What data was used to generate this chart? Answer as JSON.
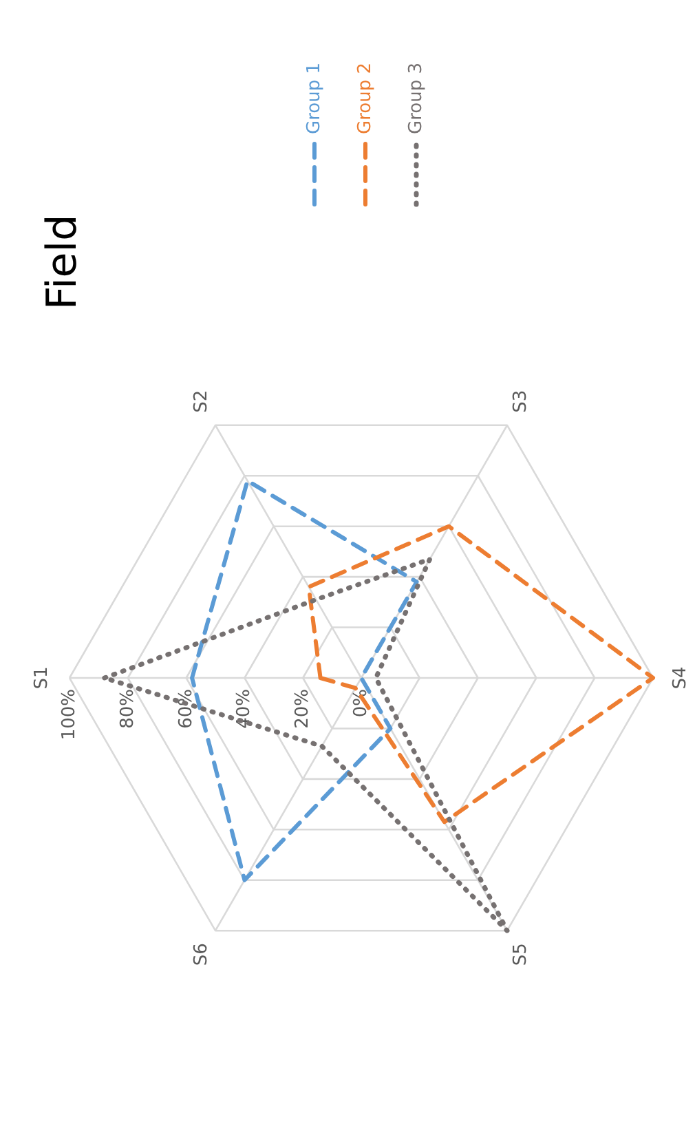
{
  "chart_data": {
    "type": "radar",
    "title": "Field",
    "categories": [
      "S1",
      "S2",
      "S3",
      "S4",
      "S5",
      "S6"
    ],
    "ylim": [
      0,
      100
    ],
    "yticks": [
      {
        "value": 0,
        "label": "0%"
      },
      {
        "value": 20,
        "label": "20%"
      },
      {
        "value": 40,
        "label": "40%"
      },
      {
        "value": 60,
        "label": "60%"
      },
      {
        "value": 80,
        "label": "80%"
      },
      {
        "value": 100,
        "label": "100%"
      }
    ],
    "grid": true,
    "legend": "top right",
    "series": [
      {
        "name": "Group 1",
        "color": "#5b9bd5",
        "line_style": "dashed",
        "values": [
          58,
          78,
          38,
          0,
          20,
          80
        ]
      },
      {
        "name": "Group 2",
        "color": "#ed7d31",
        "line_style": "dashed",
        "values": [
          14,
          36,
          60,
          100,
          57,
          4
        ]
      },
      {
        "name": "Group 3",
        "color": "#767171",
        "line_style": "dotted",
        "values": [
          88,
          31,
          47,
          5,
          100,
          27
        ]
      }
    ]
  }
}
